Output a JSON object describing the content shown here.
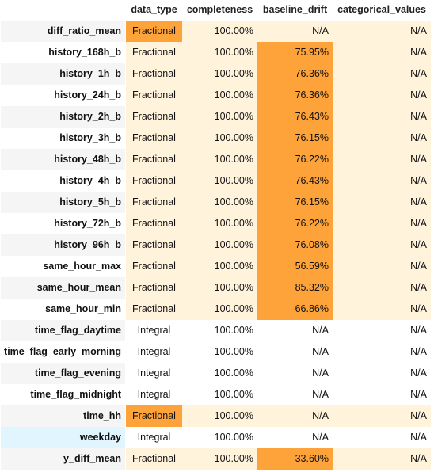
{
  "colors": {
    "normal_fill": "#fff3dc",
    "flag_fill": "#fda33a",
    "neutral_fill": "#ffffff",
    "index_stripe": "#f5f5f5",
    "index_highlight": "#e0f5fd"
  },
  "table": {
    "columns": [
      "data_type",
      "completeness",
      "baseline_drift",
      "categorical_values"
    ],
    "rows": [
      {
        "name": "diff_ratio_mean",
        "data_type": "Fractional",
        "completeness": "100.00%",
        "baseline_drift": "N/A",
        "categorical_values": "N/A",
        "flag_type": true,
        "flag_drift": false
      },
      {
        "name": "history_168h_b",
        "data_type": "Fractional",
        "completeness": "100.00%",
        "baseline_drift": "75.95%",
        "categorical_values": "N/A",
        "flag_type": false,
        "flag_drift": true
      },
      {
        "name": "history_1h_b",
        "data_type": "Fractional",
        "completeness": "100.00%",
        "baseline_drift": "76.36%",
        "categorical_values": "N/A",
        "flag_type": false,
        "flag_drift": true
      },
      {
        "name": "history_24h_b",
        "data_type": "Fractional",
        "completeness": "100.00%",
        "baseline_drift": "76.36%",
        "categorical_values": "N/A",
        "flag_type": false,
        "flag_drift": true
      },
      {
        "name": "history_2h_b",
        "data_type": "Fractional",
        "completeness": "100.00%",
        "baseline_drift": "76.43%",
        "categorical_values": "N/A",
        "flag_type": false,
        "flag_drift": true
      },
      {
        "name": "history_3h_b",
        "data_type": "Fractional",
        "completeness": "100.00%",
        "baseline_drift": "76.15%",
        "categorical_values": "N/A",
        "flag_type": false,
        "flag_drift": true
      },
      {
        "name": "history_48h_b",
        "data_type": "Fractional",
        "completeness": "100.00%",
        "baseline_drift": "76.22%",
        "categorical_values": "N/A",
        "flag_type": false,
        "flag_drift": true
      },
      {
        "name": "history_4h_b",
        "data_type": "Fractional",
        "completeness": "100.00%",
        "baseline_drift": "76.43%",
        "categorical_values": "N/A",
        "flag_type": false,
        "flag_drift": true
      },
      {
        "name": "history_5h_b",
        "data_type": "Fractional",
        "completeness": "100.00%",
        "baseline_drift": "76.15%",
        "categorical_values": "N/A",
        "flag_type": false,
        "flag_drift": true
      },
      {
        "name": "history_72h_b",
        "data_type": "Fractional",
        "completeness": "100.00%",
        "baseline_drift": "76.22%",
        "categorical_values": "N/A",
        "flag_type": false,
        "flag_drift": true
      },
      {
        "name": "history_96h_b",
        "data_type": "Fractional",
        "completeness": "100.00%",
        "baseline_drift": "76.08%",
        "categorical_values": "N/A",
        "flag_type": false,
        "flag_drift": true
      },
      {
        "name": "same_hour_max",
        "data_type": "Fractional",
        "completeness": "100.00%",
        "baseline_drift": "56.59%",
        "categorical_values": "N/A",
        "flag_type": false,
        "flag_drift": true
      },
      {
        "name": "same_hour_mean",
        "data_type": "Fractional",
        "completeness": "100.00%",
        "baseline_drift": "85.32%",
        "categorical_values": "N/A",
        "flag_type": false,
        "flag_drift": true
      },
      {
        "name": "same_hour_min",
        "data_type": "Fractional",
        "completeness": "100.00%",
        "baseline_drift": "66.86%",
        "categorical_values": "N/A",
        "flag_type": false,
        "flag_drift": true
      },
      {
        "name": "time_flag_daytime",
        "data_type": "Integral",
        "completeness": "100.00%",
        "baseline_drift": "N/A",
        "categorical_values": "N/A",
        "flag_type": false,
        "flag_drift": false
      },
      {
        "name": "time_flag_early_morning",
        "data_type": "Integral",
        "completeness": "100.00%",
        "baseline_drift": "N/A",
        "categorical_values": "N/A",
        "flag_type": false,
        "flag_drift": false
      },
      {
        "name": "time_flag_evening",
        "data_type": "Integral",
        "completeness": "100.00%",
        "baseline_drift": "N/A",
        "categorical_values": "N/A",
        "flag_type": false,
        "flag_drift": false
      },
      {
        "name": "time_flag_midnight",
        "data_type": "Integral",
        "completeness": "100.00%",
        "baseline_drift": "N/A",
        "categorical_values": "N/A",
        "flag_type": false,
        "flag_drift": false
      },
      {
        "name": "time_hh",
        "data_type": "Fractional",
        "completeness": "100.00%",
        "baseline_drift": "N/A",
        "categorical_values": "N/A",
        "flag_type": true,
        "flag_drift": false
      },
      {
        "name": "weekday",
        "data_type": "Integral",
        "completeness": "100.00%",
        "baseline_drift": "N/A",
        "categorical_values": "N/A",
        "flag_type": false,
        "flag_drift": false,
        "highlight": true
      },
      {
        "name": "y_diff_mean",
        "data_type": "Fractional",
        "completeness": "100.00%",
        "baseline_drift": "33.60%",
        "categorical_values": "N/A",
        "flag_type": false,
        "flag_drift": true
      }
    ]
  }
}
